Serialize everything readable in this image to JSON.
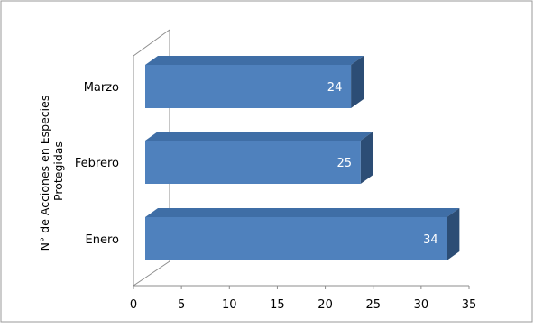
{
  "chart_data": {
    "type": "bar",
    "orientation": "horizontal",
    "style": "3d",
    "categories": [
      "Enero",
      "Febrero",
      "Marzo"
    ],
    "values": [
      34,
      25,
      24
    ],
    "ylabel": "N° de Acciones en Especies Protegidas",
    "xlabel": "",
    "xlim": [
      0,
      35
    ],
    "x_ticks": [
      0,
      5,
      10,
      15,
      20,
      25,
      30,
      35
    ],
    "legend": "none",
    "grid": false,
    "data_labels": true,
    "colors": {
      "bar_front": "#4F81BD",
      "bar_top": "#3F6EA6",
      "bar_side": "#2C4D75",
      "data_label": "#ffffff",
      "axis": "#8c8c8c",
      "frame": "#9a9a9a",
      "text": "#000000"
    }
  }
}
